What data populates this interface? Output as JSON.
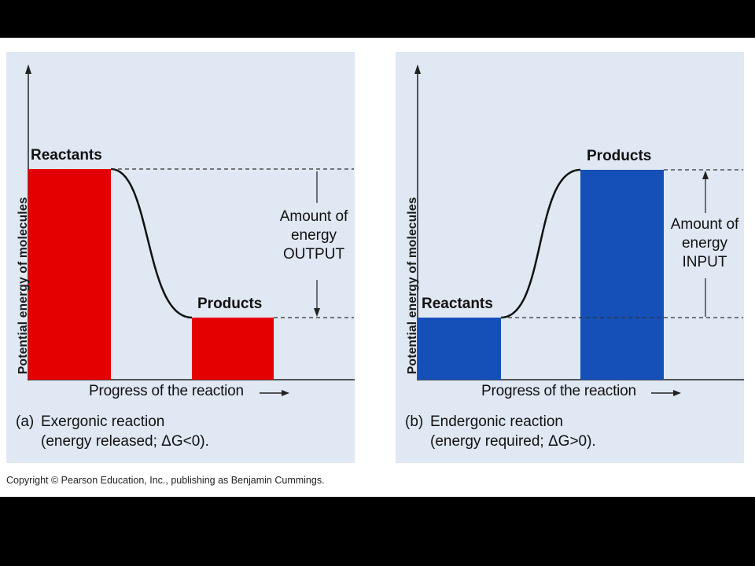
{
  "figure": {
    "copyright": "Copyright © Pearson Education, Inc., publishing as Benjamin Cummings.",
    "colors": {
      "exergonic": "#e40000",
      "endergonic": "#1450b8",
      "panel_bg": "#dfe8f3"
    }
  },
  "panel_a": {
    "y_axis_label": "Potential energy of molecules",
    "x_axis_label": "Progress of the reaction",
    "reactants_label": "Reactants",
    "products_label": "Products",
    "amount_label": {
      "line1": "Amount of",
      "line2": "energy",
      "line3": "OUTPUT"
    },
    "caption_letter": "(a)",
    "caption_title": "Exergonic reaction",
    "caption_detail": "(energy released; ΔG<0)."
  },
  "panel_b": {
    "y_axis_label": "Potential energy of molecules",
    "x_axis_label": "Progress of the reaction",
    "reactants_label": "Reactants",
    "products_label": "Products",
    "amount_label": {
      "line1": "Amount of",
      "line2": "energy",
      "line3": "INPUT"
    },
    "caption_letter": "(b)",
    "caption_title": "Endergonic reaction",
    "caption_detail": "(energy required; ΔG>0)."
  }
}
